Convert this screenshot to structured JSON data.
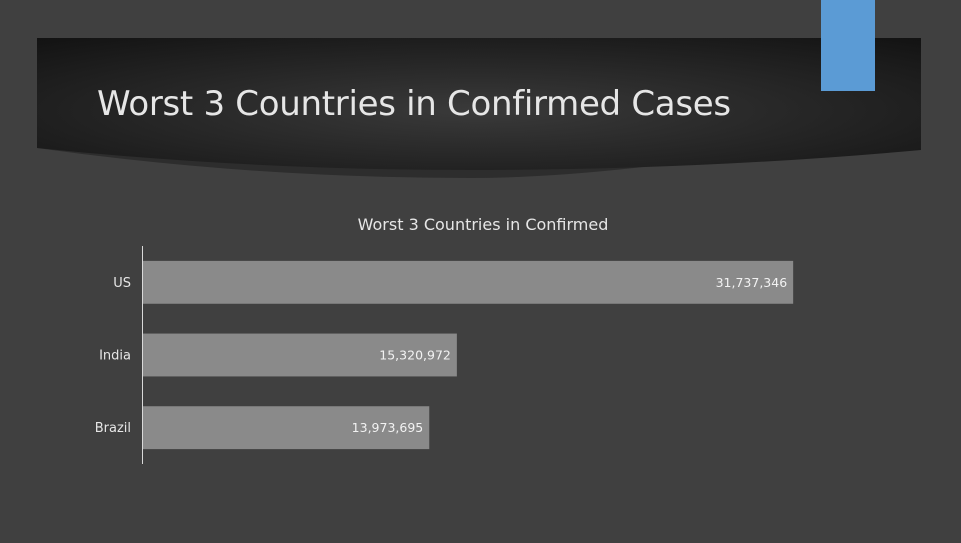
{
  "slide": {
    "title": "Worst 3 Countries in Confirmed Cases",
    "background_color": "#404040",
    "accent_color": "#5b9bd5"
  },
  "chart_data": {
    "type": "bar",
    "orientation": "horizontal",
    "title": "Worst 3 Countries in Confirmed",
    "categories": [
      "US",
      "India",
      "Brazil"
    ],
    "values": [
      31737346,
      15320972,
      13973695
    ],
    "value_labels": [
      "31,737,346",
      "15,320,972",
      "13,973,695"
    ],
    "xlim": [
      0,
      35000000
    ],
    "bar_color": "#8a8a8a",
    "grid": false,
    "legend": "none"
  }
}
